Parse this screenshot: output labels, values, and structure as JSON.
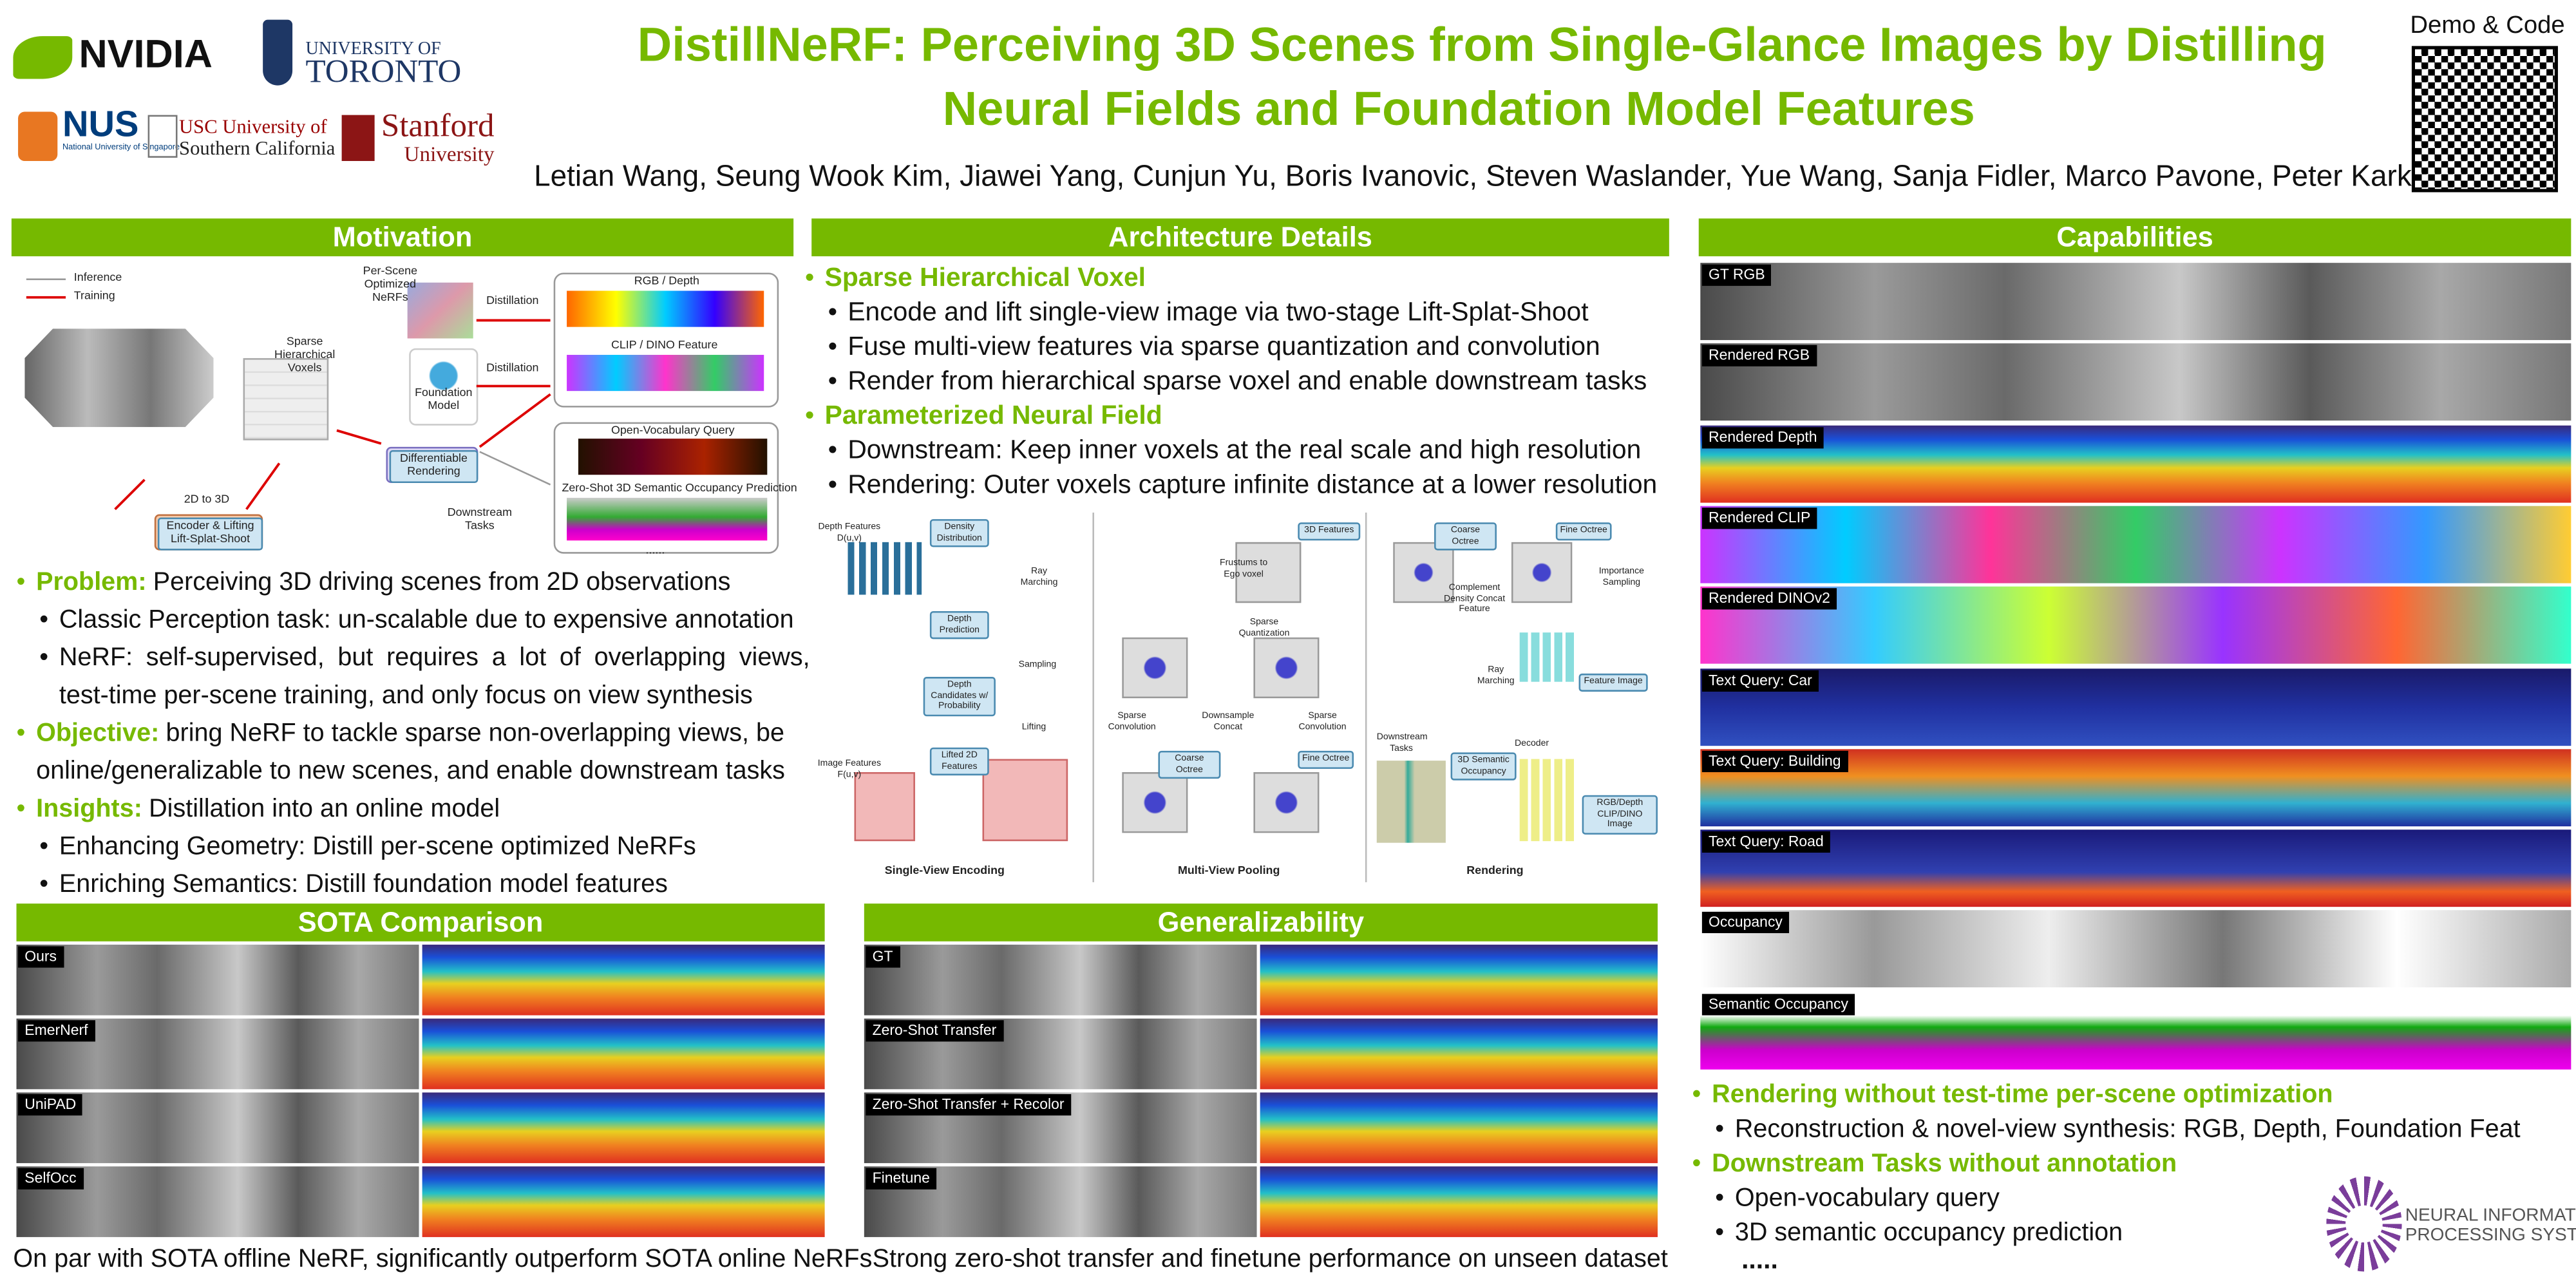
{
  "header": {
    "logos": {
      "nvidia": "NVIDIA",
      "toronto": [
        "UNIVERSITY OF",
        "TORONTO"
      ],
      "nus": [
        "NUS",
        "National University of Singapore"
      ],
      "usc": [
        "USC University of",
        "Southern California"
      ],
      "stanford": [
        "Stanford",
        "University"
      ]
    },
    "title": [
      "DistillNeRF: Perceiving 3D Scenes from Single-Glance Images by Distilling",
      "Neural Fields and Foundation Model Features"
    ],
    "authors": "Letian Wang,  Seung Wook Kim, Jiawei Yang, Cunjun Yu, Boris Ivanovic, Steven Waslander, Yue Wang, Sanja Fidler, Marco Pavone, Peter Karkus",
    "demo": "Demo & Code"
  },
  "motivation": {
    "heading": "Motivation",
    "figure": [
      "Inference",
      "Training",
      "Per-Scene Optimized NeRFs",
      "Sparse Hierarchical Voxels",
      "Foundation Model",
      "Distillation",
      "Distillation",
      "RGB / Depth",
      "CLIP / DINO Feature",
      "Differentiable Rendering",
      "Open-Vocabulary Query",
      "Zero-Shot 3D Semantic Occupancy Prediction",
      "......",
      "2D to 3D",
      "Encoder & Lifting Lift-Splat-Shoot",
      "Downstream Tasks"
    ],
    "points": [
      {
        "lead": "Problem:",
        "text": "Perceiving 3D driving scenes from 2D observations",
        "sub": [
          "Classic Perception task: un-scalable due to expensive annotation",
          "NeRF: self-supervised, but requires a lot of overlapping views, test-time per-scene training, and only focus on view synthesis"
        ]
      },
      {
        "lead": "Objective:",
        "text": "bring NeRF to tackle sparse non-overlapping views, be online/generalizable to new scenes, and enable downstream tasks"
      },
      {
        "lead": "Insights:",
        "text": "Distillation into an online model",
        "sub": [
          "Enhancing Geometry: Distill per-scene optimized NeRFs",
          "Enriching Semantics: Distill foundation model features"
        ]
      }
    ]
  },
  "architecture": {
    "heading": "Architecture Details",
    "points": [
      {
        "lead": "Sparse Hierarchical Voxel",
        "sub": [
          "Encode and lift single-view image via two-stage Lift-Splat-Shoot",
          "Fuse multi-view features via sparse quantization and convolution",
          "Render from hierarchical sparse voxel and enable downstream tasks"
        ]
      },
      {
        "lead": "Parameterized Neural Field",
        "sub": [
          "Downstream: Keep inner voxels at the real scale and high resolution",
          "Rendering: Outer voxels capture infinite distance at a lower resolution"
        ]
      }
    ],
    "figure": [
      "Depth Features D(u,v)",
      "Density Distribution",
      "Ray Marching",
      "Depth Prediction",
      "Sampling",
      "Depth Candidates w/ Probability",
      "Lifting",
      "Lifted 2D Features",
      "Image Features F(u,v)",
      "3D Features",
      "Frustums to Ego voxel",
      "Sparse Quantization",
      "Sparse Convolution",
      "Downsample Concat",
      "Sparse Convolution",
      "Coarse Octree",
      "Fine Octree",
      "Coarse Octree",
      "Fine Octree",
      "Complement Density Concat Feature",
      "Importance Sampling",
      "Ray Marching",
      "Feature Image",
      "Downstream Tasks",
      "3D Semantic Occupancy",
      "Decoder",
      "RGB/Depth CLIP/DINO Image"
    ],
    "panels": [
      "Single-View Encoding",
      "Multi-View Pooling",
      "Rendering"
    ]
  },
  "sota": {
    "heading": "SOTA Comparison",
    "rows": [
      "Ours",
      "EmerNerf",
      "UniPAD",
      "SelfOcc"
    ],
    "caption": "On par with SOTA offline NeRF, significantly outperform SOTA online NeRFs"
  },
  "generalizability": {
    "heading": "Generalizability",
    "rows": [
      "GT",
      "Zero-Shot Transfer",
      "Zero-Shot Transfer + Recolor",
      "Finetune"
    ],
    "caption": "Strong zero-shot transfer and finetune performance on unseen dataset"
  },
  "capabilities": {
    "heading": "Capabilities",
    "rows": [
      "GT RGB",
      "Rendered RGB",
      "Rendered Depth",
      "Rendered CLIP",
      "Rendered DINOv2",
      "Text Query: Car",
      "Text Query: Building",
      "Text Query: Road",
      "Occupancy",
      "Semantic Occupancy"
    ],
    "points": [
      {
        "lead": "Rendering without test-time per-scene optimization",
        "sub": [
          "Reconstruction & novel-view synthesis: RGB, Depth, Foundation Feat"
        ]
      },
      {
        "lead": "Downstream Tasks without annotation",
        "sub": [
          "Open-vocabulary query",
          "3D semantic occupancy prediction"
        ]
      }
    ],
    "more": ".....",
    "neurips": [
      "NEURAL INFORMATION",
      "PROCESSING SYSTEMS"
    ]
  }
}
